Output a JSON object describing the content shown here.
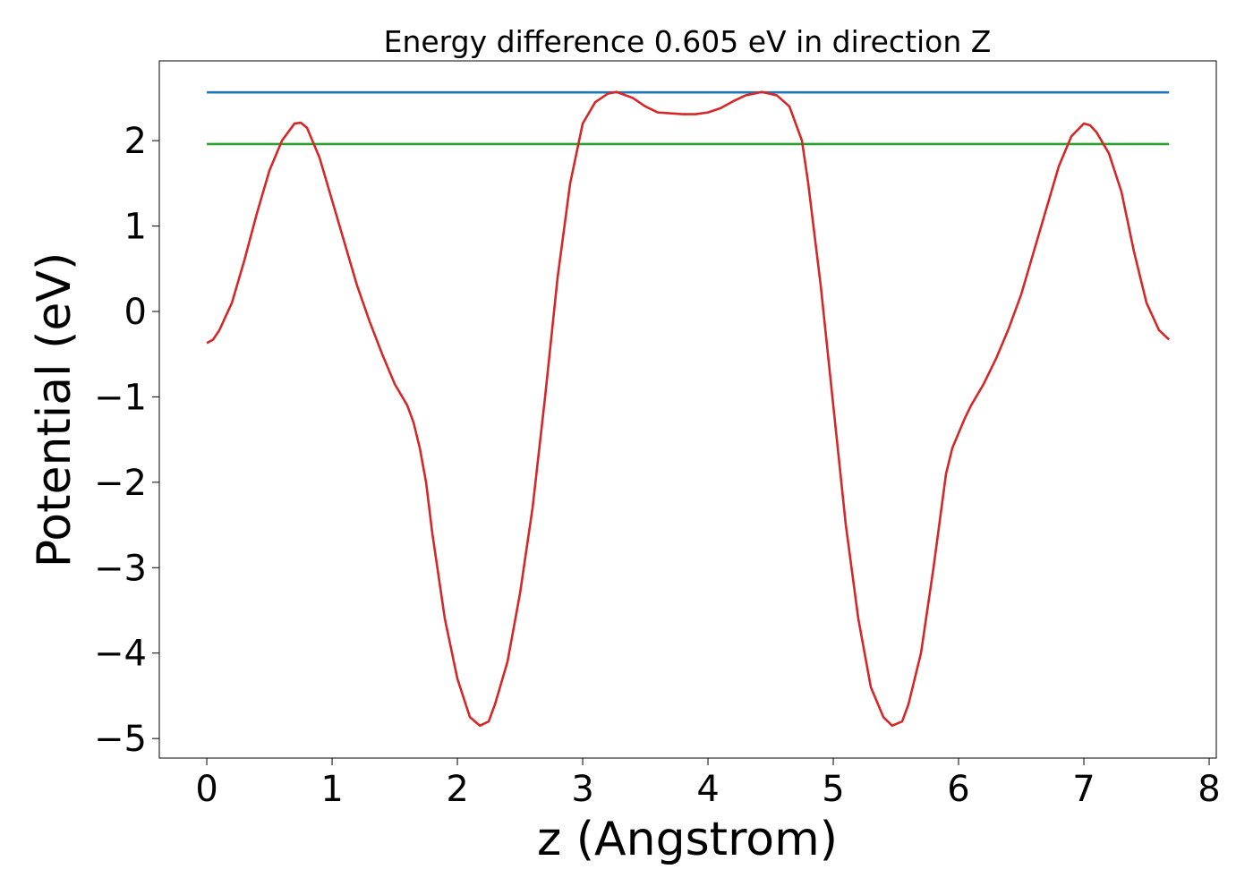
{
  "chart_data": {
    "type": "line",
    "title": "Energy difference 0.605 eV in direction Z",
    "xlabel": "z (Angstrom)",
    "ylabel": "Potential (eV)",
    "xlim": [
      -0.379,
      8.057
    ],
    "ylim": [
      -5.229,
      2.934
    ],
    "xticks": [
      0,
      1,
      2,
      3,
      4,
      5,
      6,
      7,
      8
    ],
    "yticks": [
      {
        "value": -5,
        "label": "−5"
      },
      {
        "value": -4,
        "label": "−4"
      },
      {
        "value": -3,
        "label": "−3"
      },
      {
        "value": -2,
        "label": "−2"
      },
      {
        "value": -1,
        "label": "−1"
      },
      0,
      1,
      2
    ],
    "grid": false,
    "series": [
      {
        "color": "#1f77b4",
        "x": [
          0,
          7.68
        ],
        "values": [
          2.565,
          2.565
        ]
      },
      {
        "color": "#2ca02c",
        "x": [
          0,
          7.68
        ],
        "values": [
          1.96,
          1.96
        ]
      },
      {
        "color": "#d62728",
        "x": [
          0,
          0.05,
          0.1,
          0.2,
          0.3,
          0.4,
          0.5,
          0.6,
          0.7,
          0.75,
          0.8,
          0.9,
          1.0,
          1.1,
          1.2,
          1.3,
          1.4,
          1.5,
          1.6,
          1.65,
          1.7,
          1.75,
          1.8,
          1.9,
          2.0,
          2.1,
          2.18,
          2.25,
          2.3,
          2.4,
          2.5,
          2.6,
          2.7,
          2.8,
          2.9,
          3.0,
          3.1,
          3.2,
          3.27,
          3.4,
          3.5,
          3.6,
          3.8,
          3.9,
          4.0,
          4.1,
          4.2,
          4.3,
          4.43,
          4.55,
          4.65,
          4.75,
          4.8,
          4.9,
          5.0,
          5.1,
          5.2,
          5.3,
          5.4,
          5.47,
          5.55,
          5.6,
          5.7,
          5.8,
          5.9,
          5.95,
          6.05,
          6.1,
          6.2,
          6.3,
          6.4,
          6.5,
          6.6,
          6.7,
          6.8,
          6.9,
          7.0,
          7.05,
          7.1,
          7.2,
          7.3,
          7.4,
          7.5,
          7.6,
          7.68
        ],
        "values": [
          -0.37,
          -0.33,
          -0.22,
          0.1,
          0.6,
          1.15,
          1.65,
          2.0,
          2.2,
          2.21,
          2.15,
          1.8,
          1.3,
          0.8,
          0.3,
          -0.12,
          -0.5,
          -0.85,
          -1.1,
          -1.3,
          -1.6,
          -2.0,
          -2.6,
          -3.6,
          -4.3,
          -4.75,
          -4.85,
          -4.8,
          -4.6,
          -4.1,
          -3.3,
          -2.3,
          -1.0,
          0.4,
          1.5,
          2.2,
          2.45,
          2.55,
          2.57,
          2.5,
          2.4,
          2.33,
          2.31,
          2.31,
          2.33,
          2.38,
          2.46,
          2.53,
          2.57,
          2.53,
          2.4,
          2.0,
          1.5,
          0.3,
          -1.1,
          -2.5,
          -3.6,
          -4.4,
          -4.75,
          -4.85,
          -4.8,
          -4.6,
          -4.0,
          -3.0,
          -1.9,
          -1.6,
          -1.25,
          -1.1,
          -0.85,
          -0.55,
          -0.2,
          0.2,
          0.7,
          1.2,
          1.7,
          2.05,
          2.2,
          2.18,
          2.1,
          1.85,
          1.4,
          0.7,
          0.1,
          -0.22,
          -0.33
        ]
      }
    ]
  }
}
